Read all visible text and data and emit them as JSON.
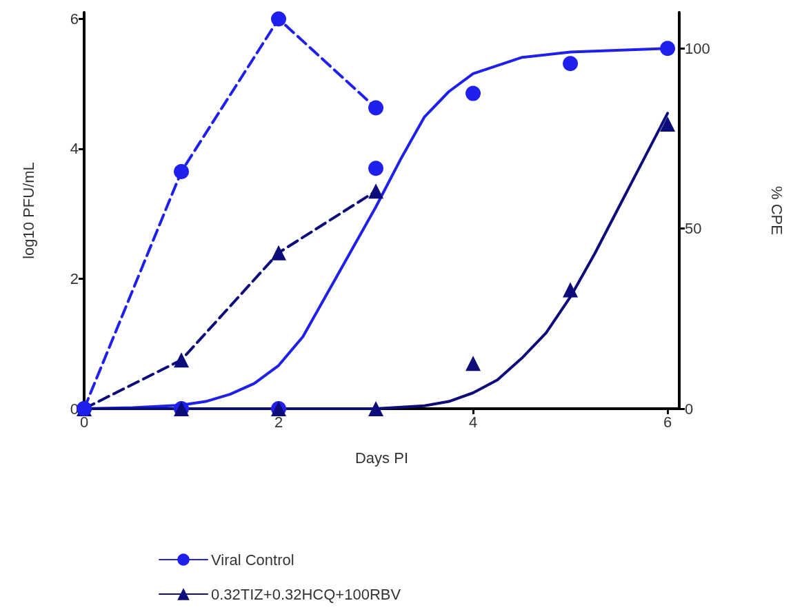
{
  "chart_data": {
    "type": "line",
    "xlabel": "Days PI",
    "ylabel": "log10 PFU/mL",
    "y2label": "% CPE",
    "xlim": [
      0,
      6.12
    ],
    "xticks": [
      0,
      2,
      4,
      6
    ],
    "ylim": [
      0,
      6.1
    ],
    "yticks": [
      0,
      2,
      4,
      6
    ],
    "y2lim": [
      0,
      110
    ],
    "y2ticks": [
      0,
      50,
      100
    ],
    "grid": false,
    "legend": "bottom",
    "series": [
      {
        "name": "Viral Control",
        "axis": "y",
        "color": "#1f1fee",
        "marker": "circle",
        "line_style": "dashed",
        "x": [
          0,
          1,
          2,
          3
        ],
        "values": [
          0,
          3.65,
          6.0,
          4.63
        ]
      },
      {
        "name": "0.32TIZ+0.32HCQ+100RBV",
        "axis": "y",
        "color": "#0c0c7a",
        "marker": "triangle",
        "line_style": "dashed",
        "x": [
          0,
          1,
          2,
          3
        ],
        "values": [
          0,
          0.75,
          2.4,
          3.35
        ]
      },
      {
        "type": "scatter",
        "axis": "y2",
        "color": "#1f1fee",
        "marker": "circle",
        "x": [
          0,
          1,
          2,
          3,
          4,
          5,
          6
        ],
        "values": [
          0,
          0,
          0,
          66.7,
          87.5,
          95.8,
          100
        ]
      },
      {
        "type": "scatter",
        "axis": "y2",
        "color": "#0c0c7a",
        "marker": "triangle",
        "x": [
          1,
          2,
          3,
          4,
          5,
          6
        ],
        "values": [
          0,
          0,
          0,
          12.6,
          33,
          79
        ]
      },
      {
        "axis": "y2",
        "color": "#1f1fee",
        "marker": "none",
        "line_style": "solid",
        "x": [
          0,
          0.5,
          1,
          1.25,
          1.5,
          1.75,
          2,
          2.25,
          2.5,
          2.75,
          3,
          3.25,
          3.5,
          3.75,
          4,
          4.5,
          5,
          6
        ],
        "values": [
          0,
          0.3,
          1,
          2,
          4,
          7,
          12,
          20,
          32,
          44,
          56,
          69,
          81,
          88,
          93,
          97.5,
          99,
          100
        ]
      },
      {
        "axis": "y2",
        "color": "#0c0c7a",
        "marker": "none",
        "line_style": "solid",
        "x": [
          0,
          3,
          3.5,
          3.75,
          4,
          4.25,
          4.5,
          4.75,
          5,
          5.25,
          5.5,
          5.75,
          6
        ],
        "values": [
          0,
          0,
          0.8,
          2,
          4.4,
          8,
          14,
          21,
          31,
          43,
          56,
          69,
          82
        ]
      }
    ]
  }
}
